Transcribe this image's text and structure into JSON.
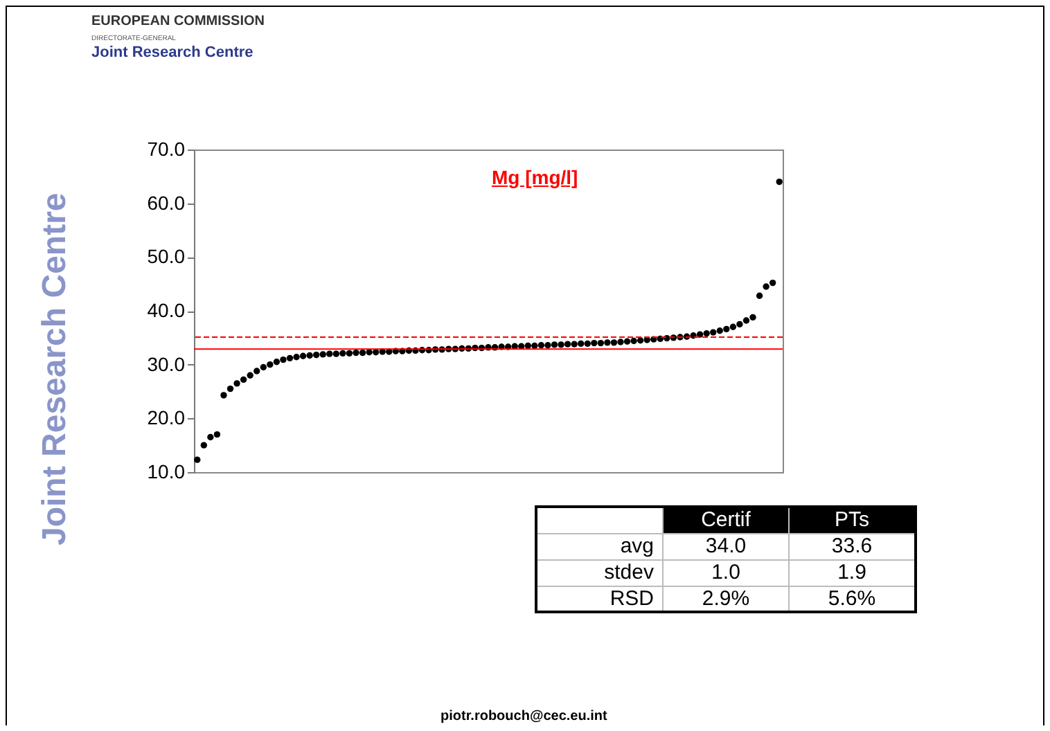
{
  "chart_data": {
    "type": "scatter",
    "title": "Mg [mg/l]",
    "categories": [
      null,
      null,
      null,
      null,
      null,
      null,
      null,
      null,
      null,
      null,
      null,
      null,
      null,
      null,
      null,
      null,
      null,
      null,
      null,
      null,
      null,
      null,
      null,
      null,
      null,
      null,
      null,
      null,
      null,
      null,
      null,
      null,
      null,
      null,
      null,
      null,
      null,
      null,
      null,
      null,
      null,
      null,
      null,
      null,
      null,
      null,
      null,
      null,
      null,
      null,
      null,
      null,
      null,
      null,
      null,
      null,
      null,
      null,
      null,
      null,
      null,
      null,
      null,
      null,
      null,
      null,
      null,
      null,
      null,
      null,
      null,
      null,
      null,
      null,
      null,
      null,
      null,
      null,
      null,
      null,
      null,
      null,
      null,
      null,
      null,
      null,
      null,
      null,
      null
    ],
    "values": [
      12.3,
      15.0,
      16.5,
      17.0,
      24.3,
      25.5,
      26.5,
      27.2,
      28.0,
      28.8,
      29.5,
      30.0,
      30.5,
      30.9,
      31.2,
      31.4,
      31.6,
      31.7,
      31.8,
      31.9,
      32.0,
      32.0,
      32.1,
      32.1,
      32.2,
      32.2,
      32.3,
      32.3,
      32.4,
      32.4,
      32.5,
      32.5,
      32.6,
      32.6,
      32.7,
      32.7,
      32.8,
      32.8,
      32.9,
      32.9,
      33.0,
      33.0,
      33.1,
      33.1,
      33.2,
      33.2,
      33.3,
      33.3,
      33.4,
      33.4,
      33.5,
      33.5,
      33.6,
      33.6,
      33.7,
      33.7,
      33.8,
      33.8,
      33.9,
      33.9,
      34.0,
      34.0,
      34.1,
      34.1,
      34.2,
      34.3,
      34.4,
      34.5,
      34.6,
      34.7,
      34.8,
      34.9,
      35.0,
      35.1,
      35.2,
      35.4,
      35.6,
      35.8,
      36.0,
      36.3,
      36.6,
      37.0,
      37.5,
      38.2,
      38.8,
      42.8,
      44.5,
      45.2,
      64.0
    ],
    "color": "#000000",
    "marker": "circle",
    "ylim": [
      10,
      70
    ],
    "yticks": [
      {
        "value": 10,
        "label": "10.0"
      },
      {
        "value": 20,
        "label": "20.0"
      },
      {
        "value": 30,
        "label": "30.0"
      },
      {
        "value": 40,
        "label": "40.0"
      },
      {
        "value": 50,
        "label": "50.0"
      },
      {
        "value": 60,
        "label": "60.0"
      },
      {
        "value": 70,
        "label": "70.0"
      }
    ],
    "tick_labels": "y",
    "ref_lines": [
      {
        "axis": "y",
        "value": 35.1,
        "color": "#ff0000",
        "line_style": "dashed"
      },
      {
        "axis": "y",
        "value": 32.9,
        "color": "#ff0000",
        "line_style": "solid"
      }
    ],
    "annotations": [
      "EUROPEAN COMMISSION",
      "DIRECTORATE-GENERAL",
      "Joint Research Centre",
      "Joint Research Centre",
      "piotr.robouch@cec.eu.int",
      "Certif",
      "PTs",
      "avg",
      "34.0",
      "33.6",
      "stdev",
      "1.0",
      "1.9",
      "RSD",
      "2.9%",
      "5.6%"
    ]
  }
}
